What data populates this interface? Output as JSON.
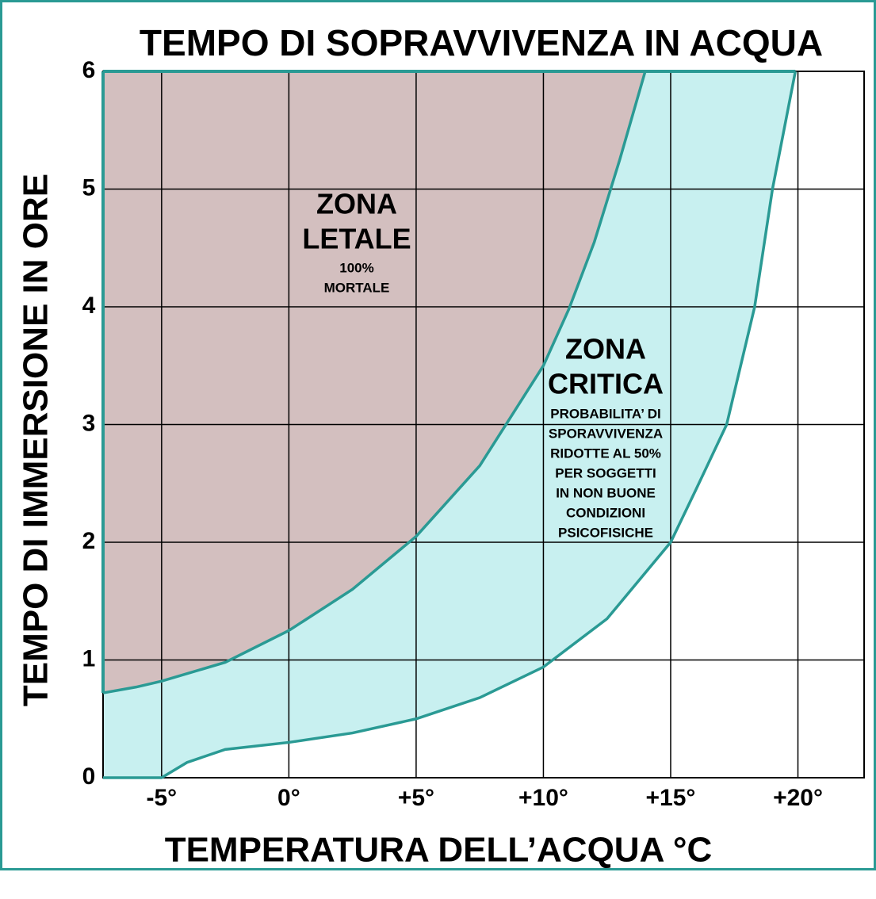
{
  "chart_data": {
    "type": "area",
    "title": "TEMPO DI SOPRAVVIVENZA IN ACQUA",
    "x_label": "TEMPERATURA DELL’ACQUA °C",
    "y_label": "TEMPO DI IMMERSIONE IN ORE",
    "xlim": [
      -7.3,
      22.6
    ],
    "ylim": [
      0,
      6
    ],
    "xticks": [
      {
        "value": -5,
        "label": "-5°"
      },
      {
        "value": 0,
        "label": "0°"
      },
      {
        "value": 5,
        "label": "+5°"
      },
      {
        "value": 10,
        "label": "+10°"
      },
      {
        "value": 15,
        "label": "+15°"
      },
      {
        "value": 20,
        "label": "+20°"
      }
    ],
    "yticks": [
      0,
      1,
      2,
      3,
      4,
      5,
      6
    ],
    "grid": true,
    "series": [
      {
        "color": "#d3bfbf",
        "x": [
          -7.3,
          -6,
          -5,
          -2.5,
          0,
          2.5,
          5,
          7.5,
          10,
          11,
          12,
          13,
          14
        ],
        "values": [
          0.72,
          0.77,
          0.82,
          0.98,
          1.25,
          1.6,
          2.05,
          2.65,
          3.5,
          3.98,
          4.55,
          5.25,
          6.0
        ]
      },
      {
        "color": "#c8f0f0",
        "x": [
          -7.3,
          -5,
          -4,
          -2.5,
          0,
          2.5,
          5,
          7.5,
          10,
          12.5,
          15,
          16,
          17.2,
          18.3,
          19,
          19.9
        ],
        "values": [
          0,
          0,
          0.13,
          0.24,
          0.3,
          0.38,
          0.5,
          0.68,
          0.94,
          1.35,
          2.0,
          2.45,
          3.0,
          4.0,
          5.0,
          6.0
        ]
      }
    ],
    "line_color": "#2a9a94",
    "annotations": [
      {
        "heading": [
          "ZONA",
          "LETALE"
        ],
        "detail": [
          "100%",
          "MORTALE"
        ]
      },
      {
        "heading": [
          "ZONA",
          "CRITICA"
        ],
        "detail": [
          "PROBABILITA’ DI",
          "SPORAVVIVENZA",
          "RIDOTTE AL 50%",
          "PER SOGGETTI",
          "IN NON BUONE",
          "CONDIZIONI",
          "PSICOFISICHE"
        ]
      }
    ]
  }
}
